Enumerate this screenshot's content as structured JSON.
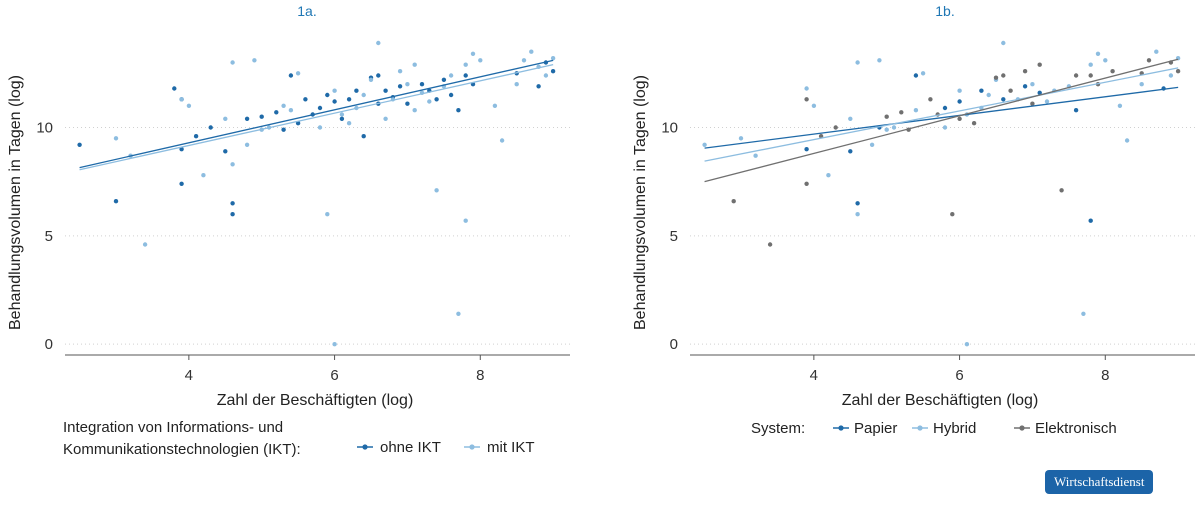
{
  "chart_data": [
    {
      "type": "scatter",
      "title": "1a.",
      "xlabel": "Zahl der Beschäftigten (log)",
      "ylabel": "Behandlungsvolumen in Tagen (log)",
      "xlim": [
        2.3,
        9.3
      ],
      "ylim": [
        -0.5,
        14.5
      ],
      "xticks": [
        4,
        6,
        8
      ],
      "yticks": [
        0,
        5,
        10
      ],
      "grid": "horizontal",
      "legend": {
        "title_lines": [
          "Integration von Informations- und",
          "Kommunikationstechnologien (IKT):"
        ],
        "entries": [
          "ohne IKT",
          "mit IKT"
        ],
        "placement": "bottom"
      },
      "series": [
        {
          "name": "ohne IKT",
          "color": "#1f6aa8",
          "fit": {
            "x": [
              2.5,
              9.0
            ],
            "y": [
              8.15,
              13.1
            ]
          },
          "points": [
            [
              2.5,
              9.2
            ],
            [
              3.0,
              6.6
            ],
            [
              3.8,
              11.8
            ],
            [
              3.9,
              11.3
            ],
            [
              3.9,
              9.0
            ],
            [
              3.9,
              7.4
            ],
            [
              4.3,
              10.0
            ],
            [
              4.5,
              8.9
            ],
            [
              4.6,
              6.5
            ],
            [
              4.6,
              6.0
            ],
            [
              4.8,
              10.4
            ],
            [
              5.0,
              10.5
            ],
            [
              5.2,
              10.7
            ],
            [
              5.3,
              9.9
            ],
            [
              5.4,
              12.4
            ],
            [
              5.5,
              10.2
            ],
            [
              5.6,
              11.3
            ],
            [
              5.8,
              10.9
            ],
            [
              5.9,
              11.5
            ],
            [
              6.0,
              11.2
            ],
            [
              6.1,
              10.4
            ],
            [
              6.2,
              11.3
            ],
            [
              6.3,
              11.7
            ],
            [
              6.4,
              9.6
            ],
            [
              6.5,
              12.3
            ],
            [
              6.6,
              11.1
            ],
            [
              6.7,
              11.7
            ],
            [
              6.8,
              11.4
            ],
            [
              6.9,
              11.9
            ],
            [
              7.0,
              11.1
            ],
            [
              7.2,
              12.0
            ],
            [
              7.3,
              11.7
            ],
            [
              7.5,
              12.2
            ],
            [
              7.6,
              11.5
            ],
            [
              7.8,
              12.4
            ],
            [
              7.9,
              12.0
            ],
            [
              8.5,
              12.5
            ],
            [
              8.9,
              13.0
            ],
            [
              9.0,
              12.6
            ],
            [
              8.8,
              11.9
            ],
            [
              4.1,
              9.6
            ],
            [
              5.7,
              10.6
            ],
            [
              6.6,
              12.4
            ],
            [
              7.4,
              11.3
            ],
            [
              7.7,
              10.8
            ]
          ]
        },
        {
          "name": "mit IKT",
          "color": "#8dbde0",
          "fit": {
            "x": [
              2.5,
              9.0
            ],
            "y": [
              8.05,
              12.9
            ]
          },
          "points": [
            [
              3.0,
              9.5
            ],
            [
              3.2,
              8.7
            ],
            [
              3.4,
              4.6
            ],
            [
              3.9,
              11.3
            ],
            [
              4.0,
              11.0
            ],
            [
              4.2,
              7.8
            ],
            [
              4.5,
              10.4
            ],
            [
              4.6,
              13.0
            ],
            [
              4.6,
              8.3
            ],
            [
              4.9,
              13.1
            ],
            [
              5.0,
              9.9
            ],
            [
              5.4,
              10.8
            ],
            [
              5.5,
              12.5
            ],
            [
              5.8,
              10.0
            ],
            [
              5.9,
              6.0
            ],
            [
              6.0,
              0.0
            ],
            [
              6.1,
              10.6
            ],
            [
              6.2,
              10.2
            ],
            [
              6.4,
              11.5
            ],
            [
              6.5,
              12.2
            ],
            [
              6.6,
              13.9
            ],
            [
              6.7,
              10.4
            ],
            [
              6.8,
              11.3
            ],
            [
              7.0,
              12.0
            ],
            [
              7.1,
              10.8
            ],
            [
              7.2,
              11.6
            ],
            [
              7.3,
              11.2
            ],
            [
              7.4,
              7.1
            ],
            [
              7.5,
              11.9
            ],
            [
              7.6,
              12.4
            ],
            [
              7.7,
              1.4
            ],
            [
              7.8,
              5.7
            ],
            [
              7.8,
              12.9
            ],
            [
              8.0,
              13.1
            ],
            [
              8.2,
              11.0
            ],
            [
              8.3,
              9.4
            ],
            [
              8.5,
              12.0
            ],
            [
              8.7,
              13.5
            ],
            [
              8.8,
              12.8
            ],
            [
              9.0,
              13.2
            ],
            [
              4.8,
              9.2
            ],
            [
              5.3,
              11.0
            ],
            [
              6.3,
              10.9
            ],
            [
              6.9,
              12.6
            ],
            [
              7.9,
              13.4
            ],
            [
              8.6,
              13.1
            ],
            [
              8.9,
              12.4
            ],
            [
              7.1,
              12.9
            ],
            [
              6.0,
              11.7
            ],
            [
              5.1,
              10.0
            ]
          ]
        }
      ]
    },
    {
      "type": "scatter",
      "title": "1b.",
      "xlabel": "Zahl der Beschäftigten (log)",
      "ylabel": "Behandlungsvolumen in Tagen (log)",
      "xlim": [
        2.3,
        9.3
      ],
      "ylim": [
        -0.5,
        14.5
      ],
      "xticks": [
        4,
        6,
        8
      ],
      "yticks": [
        0,
        5,
        10
      ],
      "grid": "horizontal",
      "legend": {
        "title_lines": [
          "System:"
        ],
        "entries": [
          "Papier",
          "Hybrid",
          "Elektronisch"
        ],
        "placement": "bottom"
      },
      "series": [
        {
          "name": "Papier",
          "color": "#1f6aa8",
          "fit": {
            "x": [
              2.5,
              9.0
            ],
            "y": [
              9.05,
              11.85
            ]
          },
          "points": [
            [
              3.9,
              9.0
            ],
            [
              4.6,
              6.5
            ],
            [
              4.9,
              10.0
            ],
            [
              5.4,
              12.4
            ],
            [
              6.0,
              11.2
            ],
            [
              6.3,
              11.7
            ],
            [
              6.6,
              11.3
            ],
            [
              7.1,
              11.6
            ],
            [
              7.6,
              10.8
            ],
            [
              7.8,
              5.7
            ],
            [
              8.8,
              11.8
            ],
            [
              4.5,
              8.9
            ],
            [
              5.8,
              10.9
            ],
            [
              6.9,
              11.9
            ]
          ]
        },
        {
          "name": "Hybrid",
          "color": "#8dbde0",
          "fit": {
            "x": [
              2.5,
              9.0
            ],
            "y": [
              8.45,
              12.75
            ]
          },
          "points": [
            [
              2.5,
              9.2
            ],
            [
              3.0,
              9.5
            ],
            [
              3.2,
              8.7
            ],
            [
              3.9,
              11.8
            ],
            [
              4.0,
              11.0
            ],
            [
              4.2,
              7.8
            ],
            [
              4.5,
              10.4
            ],
            [
              4.6,
              13.0
            ],
            [
              4.6,
              6.0
            ],
            [
              4.9,
              13.1
            ],
            [
              5.0,
              9.9
            ],
            [
              5.4,
              10.8
            ],
            [
              5.5,
              12.5
            ],
            [
              5.8,
              10.0
            ],
            [
              6.1,
              0.0
            ],
            [
              6.1,
              10.6
            ],
            [
              6.4,
              11.5
            ],
            [
              6.5,
              12.2
            ],
            [
              6.6,
              13.9
            ],
            [
              6.8,
              11.3
            ],
            [
              7.0,
              12.0
            ],
            [
              7.2,
              11.2
            ],
            [
              7.5,
              11.9
            ],
            [
              7.7,
              1.4
            ],
            [
              7.8,
              12.9
            ],
            [
              8.0,
              13.1
            ],
            [
              8.2,
              11.0
            ],
            [
              8.3,
              9.4
            ],
            [
              8.5,
              12.0
            ],
            [
              8.7,
              13.5
            ],
            [
              9.0,
              13.2
            ],
            [
              4.8,
              9.2
            ],
            [
              6.3,
              10.9
            ],
            [
              7.9,
              13.4
            ],
            [
              8.9,
              12.4
            ],
            [
              5.1,
              10.0
            ],
            [
              6.0,
              11.7
            ],
            [
              7.3,
              11.7
            ]
          ]
        },
        {
          "name": "Elektronisch",
          "color": "#707070",
          "fit": {
            "x": [
              2.5,
              9.0
            ],
            "y": [
              7.5,
              13.15
            ]
          },
          "points": [
            [
              2.9,
              6.6
            ],
            [
              3.4,
              4.6
            ],
            [
              3.9,
              11.3
            ],
            [
              3.9,
              7.4
            ],
            [
              4.1,
              9.6
            ],
            [
              4.3,
              10.0
            ],
            [
              5.0,
              10.5
            ],
            [
              5.3,
              9.9
            ],
            [
              5.6,
              11.3
            ],
            [
              5.9,
              6.0
            ],
            [
              6.0,
              10.4
            ],
            [
              6.2,
              10.2
            ],
            [
              6.5,
              12.3
            ],
            [
              6.7,
              11.7
            ],
            [
              6.9,
              12.6
            ],
            [
              7.0,
              11.1
            ],
            [
              7.1,
              12.9
            ],
            [
              7.4,
              7.1
            ],
            [
              7.6,
              12.4
            ],
            [
              7.9,
              12.0
            ],
            [
              8.1,
              12.6
            ],
            [
              8.5,
              12.5
            ],
            [
              8.6,
              13.1
            ],
            [
              8.9,
              13.0
            ],
            [
              9.0,
              12.6
            ],
            [
              5.2,
              10.7
            ],
            [
              5.7,
              10.6
            ],
            [
              6.6,
              12.4
            ],
            [
              7.8,
              12.4
            ]
          ]
        }
      ]
    }
  ],
  "brand": {
    "label": "Wirtschaftsdienst"
  }
}
